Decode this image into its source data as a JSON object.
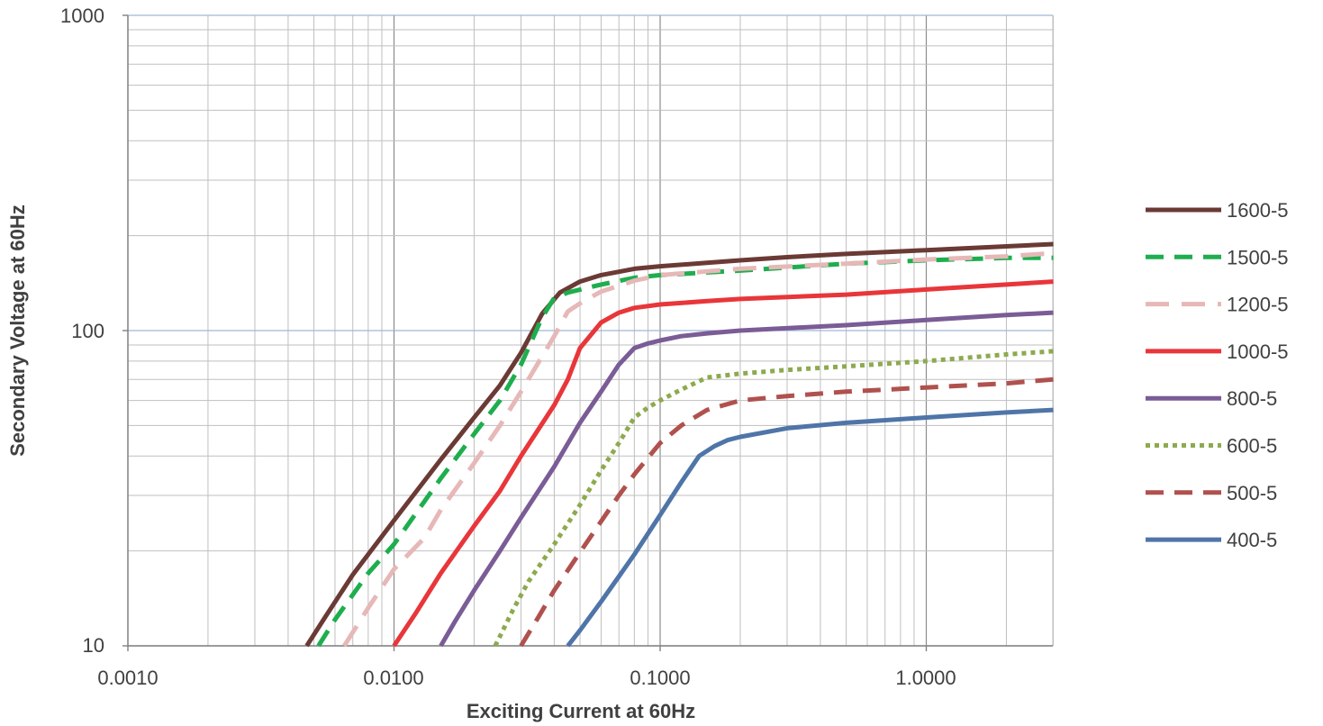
{
  "chart_data": {
    "type": "line",
    "xlabel": "Exciting Current at 60Hz",
    "ylabel": "Secondary Voltage at 60Hz",
    "x_scale": "log",
    "y_scale": "log",
    "xlim": [
      0.001,
      3.0
    ],
    "ylim": [
      10,
      1000
    ],
    "x_tick_labels": [
      "0.0010",
      "0.0100",
      "0.1000",
      "1.0000"
    ],
    "y_tick_labels": [
      "10",
      "100",
      "1000"
    ],
    "grid": true,
    "legend_position": "right",
    "series": [
      {
        "name": "1600-5",
        "color": "#6B3A35",
        "dash": "solid",
        "x": [
          0.0047,
          0.0055,
          0.007,
          0.01,
          0.015,
          0.02,
          0.025,
          0.03,
          0.036,
          0.042,
          0.05,
          0.06,
          0.08,
          0.1,
          0.15,
          0.2,
          0.3,
          0.5,
          1.0,
          2.0,
          3.0
        ],
        "y": [
          10,
          12.3,
          16.8,
          25,
          39,
          53,
          67,
          85,
          113,
          132,
          143,
          150,
          157,
          160,
          164,
          167,
          171,
          175,
          180,
          185,
          188
        ]
      },
      {
        "name": "1500-5",
        "color": "#1EAE4E",
        "dash": "dashed",
        "x": [
          0.0052,
          0.006,
          0.008,
          0.01,
          0.015,
          0.02,
          0.025,
          0.03,
          0.036,
          0.04,
          0.045,
          0.06,
          0.08,
          0.1,
          0.2,
          0.5,
          1.0,
          2.0,
          3.0
        ],
        "y": [
          10,
          12.1,
          17,
          21,
          34,
          47,
          60,
          78,
          110,
          127,
          132,
          140,
          147,
          150,
          155,
          163,
          167,
          170,
          170
        ]
      },
      {
        "name": "1200-5",
        "color": "#E6B8B7",
        "dash": "longdash",
        "x": [
          0.0065,
          0.008,
          0.01,
          0.013,
          0.015,
          0.02,
          0.025,
          0.03,
          0.04,
          0.045,
          0.05,
          0.06,
          0.08,
          0.1,
          0.2,
          0.5,
          1.0,
          2.0,
          3.0
        ],
        "y": [
          10,
          13.2,
          17.5,
          22,
          27,
          38,
          50,
          64,
          96,
          115,
          122,
          133,
          144,
          150,
          157,
          163,
          168,
          172,
          176
        ]
      },
      {
        "name": "1000-5",
        "color": "#E8363A",
        "dash": "solid",
        "x": [
          0.01,
          0.012,
          0.015,
          0.02,
          0.025,
          0.03,
          0.04,
          0.045,
          0.05,
          0.06,
          0.07,
          0.08,
          0.1,
          0.15,
          0.2,
          0.5,
          1.0,
          2.0,
          3.0
        ],
        "y": [
          10,
          12.6,
          17,
          24,
          31,
          40,
          58,
          70,
          88,
          106,
          114,
          118,
          121,
          124,
          126,
          130,
          135,
          140,
          143
        ]
      },
      {
        "name": "800-5",
        "color": "#7A5C96",
        "dash": "solid",
        "x": [
          0.015,
          0.017,
          0.02,
          0.025,
          0.03,
          0.04,
          0.05,
          0.06,
          0.07,
          0.08,
          0.09,
          0.1,
          0.12,
          0.15,
          0.2,
          0.5,
          1.0,
          2.0,
          3.0
        ],
        "y": [
          10,
          12,
          15,
          20,
          25.5,
          37,
          51,
          64,
          78,
          88,
          91,
          93,
          96,
          98,
          100,
          104,
          108,
          112,
          114
        ]
      },
      {
        "name": "600-5",
        "color": "#8DAA4E",
        "dash": "dotted",
        "x": [
          0.024,
          0.028,
          0.032,
          0.04,
          0.05,
          0.06,
          0.07,
          0.08,
          0.09,
          0.1,
          0.12,
          0.15,
          0.2,
          0.3,
          0.5,
          1.0,
          2.0,
          3.0
        ],
        "y": [
          10,
          13,
          16,
          21,
          28,
          36,
          44,
          53,
          57,
          60,
          65,
          71,
          73,
          75,
          77,
          80,
          84,
          86
        ]
      },
      {
        "name": "500-5",
        "color": "#B0514E",
        "dash": "dashed",
        "x": [
          0.03,
          0.035,
          0.04,
          0.05,
          0.06,
          0.07,
          0.08,
          0.1,
          0.12,
          0.15,
          0.2,
          0.3,
          0.5,
          1.0,
          2.0,
          3.0
        ],
        "y": [
          10,
          12.4,
          15,
          19.8,
          24.8,
          30,
          35,
          44,
          50,
          56,
          60,
          62,
          64,
          66,
          68,
          70
        ]
      },
      {
        "name": "400-5",
        "color": "#4F75A8",
        "dash": "solid",
        "x": [
          0.045,
          0.05,
          0.06,
          0.07,
          0.08,
          0.1,
          0.12,
          0.14,
          0.16,
          0.18,
          0.2,
          0.3,
          0.5,
          1.0,
          2.0,
          3.0
        ],
        "y": [
          10,
          11.2,
          13.8,
          16.6,
          19.5,
          26,
          33,
          40,
          43,
          45,
          46,
          49,
          51,
          53,
          55,
          56
        ]
      }
    ]
  }
}
